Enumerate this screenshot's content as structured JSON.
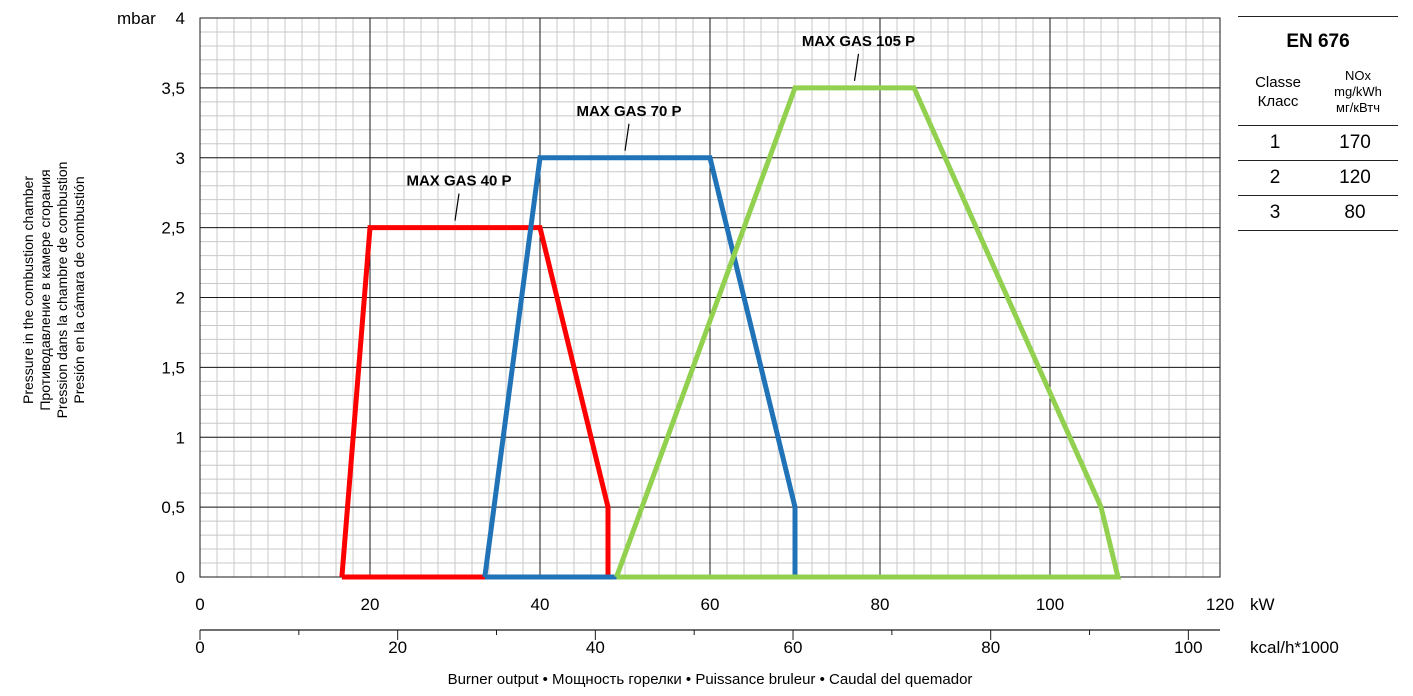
{
  "chart_data": {
    "type": "line",
    "title": "",
    "x_unit_primary": "kW",
    "x_unit_secondary": "kcal/h*1000",
    "y_unit": "mbar",
    "xlim": [
      0,
      120
    ],
    "ylim": [
      0,
      4
    ],
    "x_ticks": [
      "0",
      "20",
      "40",
      "60",
      "80",
      "100",
      "120"
    ],
    "x_ticks_secondary": [
      "0",
      "20",
      "40",
      "60",
      "80",
      "100"
    ],
    "x_secondary_max": 103.2,
    "y_ticks": [
      "0",
      "0,5",
      "1",
      "1,5",
      "2",
      "2,5",
      "3",
      "3,5",
      "4"
    ],
    "grid": true,
    "ylabel": [
      "Pressure in the combustion chamber",
      "Противодавление в камере сгорания",
      "Pression dans la chambre de combustion",
      "Presión en la cámara de combustión"
    ],
    "xlabel": "Burner output • Мощность горелки • Puissance bruleur • Caudal del quemador",
    "series": [
      {
        "name": "MAX GAS 40 P",
        "color": "#ff0000",
        "x": [
          16.7,
          20,
          40,
          48,
          48,
          16.7
        ],
        "y": [
          0,
          2.5,
          2.5,
          0.5,
          0,
          0
        ]
      },
      {
        "name": "MAX GAS 70 P",
        "color": "#2173b8",
        "x": [
          33.5,
          40,
          60,
          70,
          70,
          33.5
        ],
        "y": [
          0,
          3,
          3,
          0.5,
          0,
          0
        ]
      },
      {
        "name": "MAX GAS 105 P",
        "color": "#92d050",
        "x": [
          49,
          70,
          84,
          106,
          108,
          49
        ],
        "y": [
          0,
          3.5,
          3.5,
          0.5,
          0,
          0
        ]
      }
    ]
  },
  "en676": {
    "title": "EN 676",
    "col1_header": [
      "Classe",
      "Класс"
    ],
    "col2_header": [
      "NOx",
      "mg/kWh",
      "мг/кВтч"
    ],
    "rows": [
      {
        "cls": "1",
        "nox": "170"
      },
      {
        "cls": "2",
        "nox": "120"
      },
      {
        "cls": "3",
        "nox": "80"
      }
    ]
  }
}
